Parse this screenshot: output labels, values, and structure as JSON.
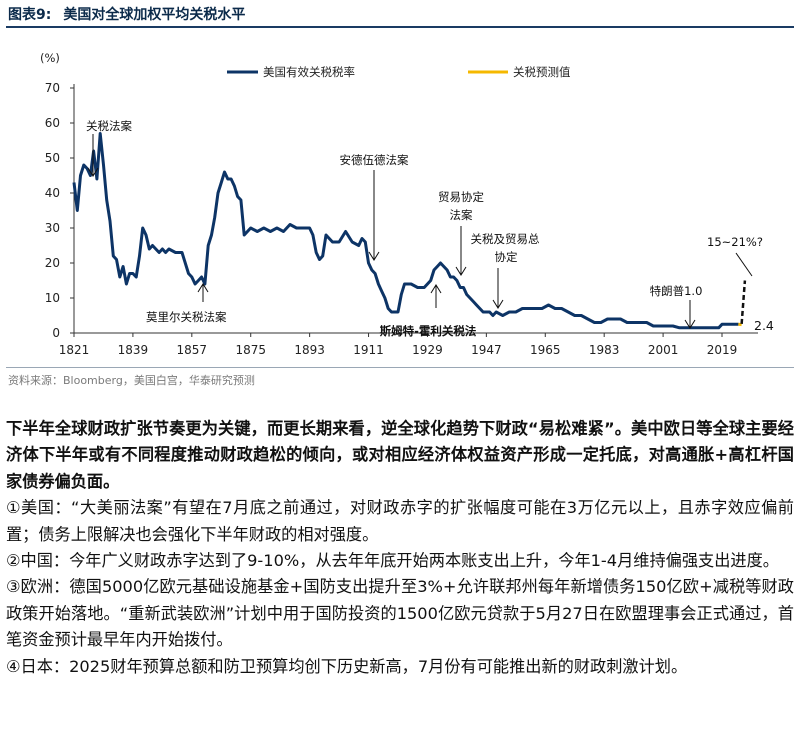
{
  "figure": {
    "label": "图表9:",
    "title": "美国对全球加权平均关税水平",
    "source": "资料来源：Bloomberg，美国白宫，华泰研究预测"
  },
  "chart_data": {
    "type": "line",
    "y_unit": "(%)",
    "ylim": [
      0,
      70
    ],
    "yticks": [
      0,
      10,
      20,
      30,
      40,
      50,
      60,
      70
    ],
    "xlim": [
      1821,
      2030
    ],
    "xticks": [
      1821,
      1839,
      1857,
      1875,
      1893,
      1911,
      1929,
      1947,
      1965,
      1983,
      2001,
      2019
    ],
    "colors": {
      "effective": "#0d3466",
      "forecast": "#f5b800",
      "projection": "#111111"
    },
    "series": [
      {
        "name": "美国有效关税税率",
        "x": [
          1821,
          1822,
          1823,
          1824,
          1825,
          1826,
          1827,
          1828,
          1829,
          1830,
          1831,
          1832,
          1833,
          1834,
          1835,
          1836,
          1837,
          1838,
          1839,
          1840,
          1841,
          1842,
          1843,
          1844,
          1845,
          1846,
          1847,
          1848,
          1849,
          1850,
          1852,
          1854,
          1856,
          1857,
          1858,
          1859,
          1860,
          1861,
          1862,
          1863,
          1864,
          1865,
          1866,
          1867,
          1868,
          1869,
          1870,
          1871,
          1872,
          1873,
          1875,
          1877,
          1879,
          1881,
          1883,
          1885,
          1887,
          1889,
          1891,
          1893,
          1894,
          1895,
          1896,
          1897,
          1898,
          1900,
          1902,
          1904,
          1906,
          1908,
          1909,
          1910,
          1911,
          1912,
          1913,
          1914,
          1915,
          1916,
          1917,
          1918,
          1919,
          1920,
          1921,
          1922,
          1923,
          1924,
          1926,
          1928,
          1930,
          1931,
          1932,
          1933,
          1934,
          1935,
          1936,
          1937,
          1938,
          1939,
          1940,
          1941,
          1942,
          1943,
          1944,
          1945,
          1946,
          1947,
          1948,
          1949,
          1950,
          1952,
          1954,
          1956,
          1958,
          1960,
          1962,
          1964,
          1966,
          1968,
          1970,
          1972,
          1974,
          1976,
          1978,
          1980,
          1982,
          1984,
          1986,
          1988,
          1990,
          1992,
          1994,
          1996,
          1998,
          2000,
          2002,
          2004,
          2006,
          2008,
          2010,
          2012,
          2014,
          2016,
          2018,
          2019,
          2020,
          2021,
          2022,
          2023,
          2024
        ],
        "values": [
          43,
          35,
          45,
          48,
          47,
          45,
          52,
          44,
          57,
          48,
          38,
          32,
          22,
          21,
          16,
          19,
          14,
          17,
          17,
          16,
          22,
          30,
          28,
          24,
          25,
          24,
          23,
          24,
          23,
          24,
          23,
          23,
          17,
          16,
          14,
          15,
          16,
          14,
          25,
          28,
          33,
          40,
          43,
          46,
          44,
          44,
          42,
          39,
          38,
          28,
          30,
          29,
          30,
          29,
          30,
          29,
          31,
          30,
          30,
          30,
          28,
          23,
          21,
          22,
          28,
          26,
          26,
          29,
          26,
          25,
          27,
          26,
          20,
          18,
          17,
          14,
          12,
          10,
          7,
          6,
          6,
          6,
          11,
          14,
          14,
          14,
          13,
          13,
          15,
          18,
          19,
          20,
          19,
          18,
          16,
          16,
          15,
          13,
          13,
          11,
          10,
          9,
          8,
          7,
          6,
          6,
          6,
          5,
          6,
          5,
          6,
          6,
          7,
          7,
          7,
          7,
          8,
          7,
          7,
          6,
          5,
          5,
          4,
          3,
          3,
          4,
          4,
          4,
          3,
          3,
          3,
          3,
          2,
          2,
          2,
          2,
          1.5,
          1.5,
          1.5,
          1.5,
          1.5,
          1.5,
          1.5,
          2.5,
          2.5,
          2.5,
          2.5,
          2.5,
          2.5
        ]
      },
      {
        "name": "关税预测值",
        "x": [
          2024,
          2025
        ],
        "values": [
          2.5,
          2.4
        ]
      }
    ],
    "projection_line": {
      "x": [
        2025,
        2026
      ],
      "values": [
        2.6,
        15
      ]
    },
    "annotations": [
      {
        "id": "tariff-of-1828",
        "text": "关税法案",
        "x": 1829,
        "y": 57
      },
      {
        "id": "morrill-tariff",
        "text": "莫里尔关税法案",
        "x": 1861,
        "y": 16
      },
      {
        "id": "underwood-tariff",
        "text": "安德伍德法案",
        "x": 1913,
        "y": 20
      },
      {
        "id": "smoot-hawley",
        "text": "斯姆特-霍利关税法",
        "x": 1930,
        "y": 13
      },
      {
        "id": "trade-agreements-act",
        "text": "贸易协定法案",
        "x": 1934,
        "y": 19
      },
      {
        "id": "gatt",
        "text": "关税及贸易总协定",
        "x": 1947,
        "y": 7
      },
      {
        "id": "trump-1",
        "text": "特朗普1.0",
        "x": 2012,
        "y": 1.5
      },
      {
        "id": "projection-range",
        "text": "15~21%?",
        "x": 2025,
        "y": 15
      },
      {
        "id": "forecast-value",
        "text": "2.4",
        "x": 2025,
        "y": 2.4
      }
    ],
    "legend_position": "top"
  },
  "body": {
    "lead": "下半年全球财政扩张节奏更为关键，而更长期来看，逆全球化趋势下财政“易松难紧”。美中欧日等全球主要经济体下半年或有不同程度推动财政趋松的倾向，或对相应经济体权益资产形成一定托底，对高通胀+高杠杆国家债券偏负面。",
    "points": [
      "①美国：“大美丽法案”有望在7月底之前通过，对财政赤字的扩张幅度可能在3万亿元以上，且赤字效应偏前置；债务上限解决也会强化下半年财政的相对强度。",
      "②中国：今年广义财政赤字达到了9-10%，从去年年底开始两本账支出上升，今年1-4月维持偏强支出进度。",
      "③欧洲：德国5000亿欧元基础设施基金+国防支出提升至3%+允许联邦州每年新增债务150亿欧+减税等财政政策开始落地。“重新武装欧洲”计划中用于国防投资的1500亿欧元贷款于5月27日在欧盟理事会正式通过，首笔资金预计最早年内开始拨付。",
      "④日本：2025财年预算总额和防卫预算均创下历史新高，7月份有可能推出新的财政刺激计划。"
    ]
  }
}
